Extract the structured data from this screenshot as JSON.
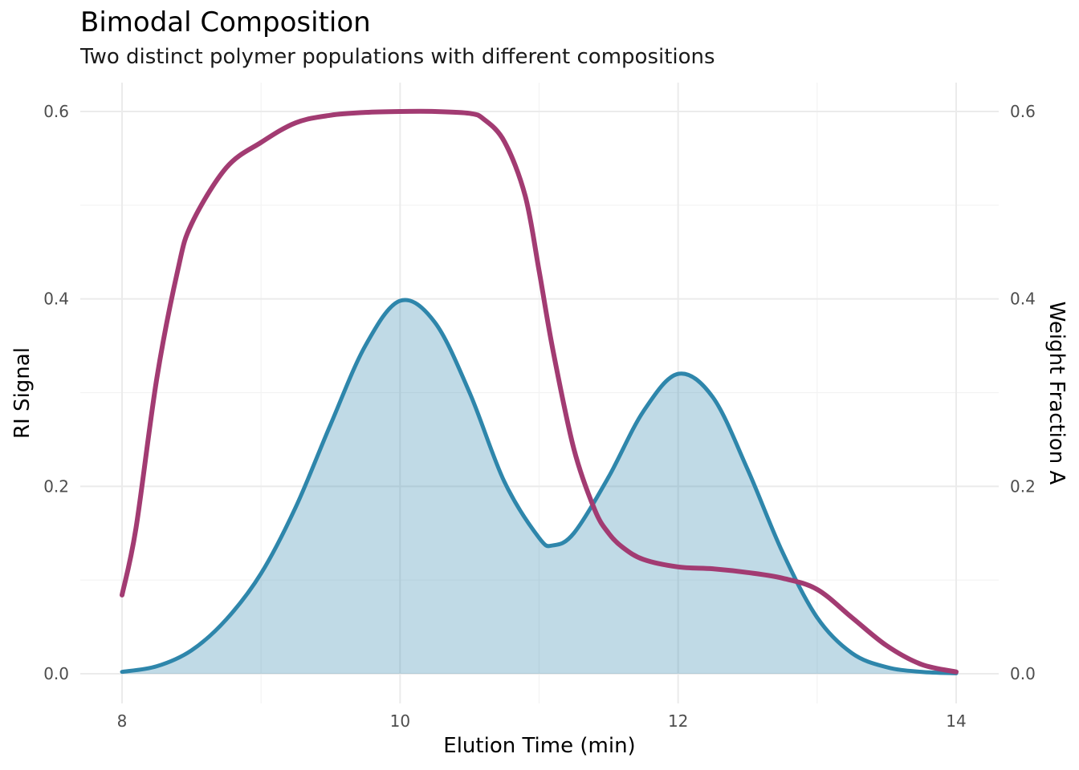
{
  "chart_data": {
    "type": "area",
    "title": "Bimodal Composition",
    "subtitle": "Two distinct polymer populations with different compositions",
    "xlabel": "Elution Time (min)",
    "ylabel": "RI Signal",
    "y2label": "Weight Fraction A",
    "xlim": [
      8,
      14
    ],
    "ylim": [
      0,
      0.6
    ],
    "y2lim": [
      0,
      0.6
    ],
    "x_ticks": [
      8,
      10,
      12,
      14
    ],
    "x_tick_labels": [
      "8",
      "10",
      "12",
      "14"
    ],
    "y_ticks": [
      0,
      0.2,
      0.4,
      0.6
    ],
    "y_tick_labels": [
      "0.0",
      "0.2",
      "0.4",
      "0.6"
    ],
    "y2_ticks": [
      0,
      0.2,
      0.4,
      0.6
    ],
    "y2_tick_labels": [
      "0.0",
      "0.2",
      "0.4",
      "0.6"
    ],
    "grid": true,
    "colors": {
      "ri_line": "#2E86AB",
      "ri_fill": "#2E86AB",
      "fraction_line": "#A23B72",
      "grid_major": "#EBEBEB",
      "grid_minor": "#F3F3F3"
    },
    "series": [
      {
        "name": "RI Signal",
        "axis": "left",
        "style": "area",
        "x": [
          8.0,
          8.25,
          8.5,
          8.75,
          9.0,
          9.25,
          9.5,
          9.75,
          10.0,
          10.25,
          10.5,
          10.75,
          11.0,
          11.1,
          11.25,
          11.5,
          11.75,
          12.0,
          12.25,
          12.5,
          12.75,
          13.0,
          13.25,
          13.5,
          13.75,
          14.0
        ],
        "values": [
          0.002,
          0.008,
          0.025,
          0.058,
          0.107,
          0.178,
          0.266,
          0.35,
          0.398,
          0.375,
          0.3,
          0.205,
          0.145,
          0.137,
          0.15,
          0.21,
          0.28,
          0.32,
          0.295,
          0.218,
          0.13,
          0.06,
          0.022,
          0.007,
          0.002,
          0.0005
        ]
      },
      {
        "name": "Weight Fraction A",
        "axis": "right",
        "style": "line",
        "x": [
          8.0,
          8.1,
          8.25,
          8.4,
          8.5,
          8.75,
          9.0,
          9.25,
          9.5,
          9.75,
          10.0,
          10.25,
          10.5,
          10.6,
          10.75,
          10.9,
          11.0,
          11.1,
          11.25,
          11.4,
          11.5,
          11.6,
          11.75,
          12.0,
          12.25,
          12.5,
          12.75,
          13.0,
          13.25,
          13.5,
          13.75,
          14.0
        ],
        "values": [
          0.084,
          0.155,
          0.315,
          0.43,
          0.48,
          0.54,
          0.567,
          0.588,
          0.596,
          0.599,
          0.6,
          0.6,
          0.598,
          0.592,
          0.568,
          0.51,
          0.43,
          0.345,
          0.24,
          0.175,
          0.15,
          0.135,
          0.122,
          0.114,
          0.112,
          0.108,
          0.102,
          0.09,
          0.06,
          0.03,
          0.01,
          0.002
        ]
      }
    ]
  }
}
